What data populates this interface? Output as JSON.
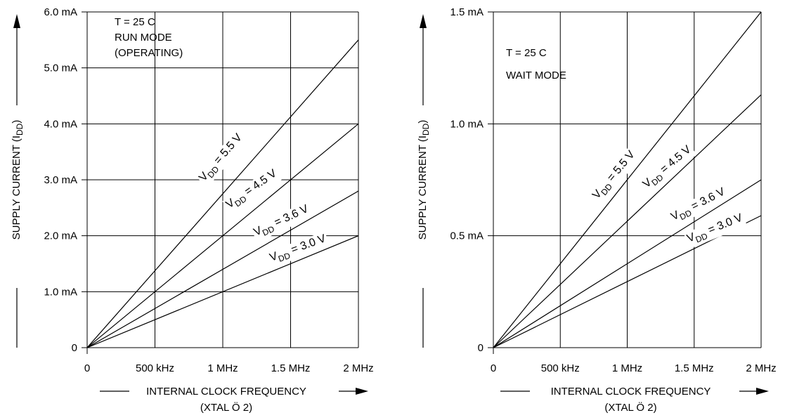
{
  "chart_data": [
    {
      "type": "line",
      "annotation": [
        "T = 25  C",
        "RUN MODE",
        "(OPERATING)"
      ],
      "xlabel": "INTERNAL CLOCK FREQUENCY",
      "xlabel_sub": "(XTAL Ö 2)",
      "ylabel": "SUPPLY CURRENT",
      "ylabel_symbol": "I",
      "ylabel_symbol_sub": "DD",
      "x_ticks": [
        "0",
        "500 kHz",
        "1 MHz",
        "1.5 MHz",
        "2 MHz"
      ],
      "y_ticks": [
        "0",
        "1.0 mA",
        "2.0 mA",
        "3.0 mA",
        "4.0 mA",
        "5.0 mA",
        "6.0 mA"
      ],
      "xlim": [
        0,
        2
      ],
      "ylim": [
        0,
        6
      ],
      "x_unit": "MHz",
      "y_unit": "mA",
      "grid": true,
      "series": [
        {
          "name_prefix": "V",
          "name_sub": "DD",
          "name_suffix": " = 5.5 V",
          "x": [
            0,
            2
          ],
          "y": [
            0,
            5.5
          ]
        },
        {
          "name_prefix": "V",
          "name_sub": "DD",
          "name_suffix": " = 4.5 V",
          "x": [
            0,
            2
          ],
          "y": [
            0,
            4.0
          ]
        },
        {
          "name_prefix": "V",
          "name_sub": "DD",
          "name_suffix": " = 3.6 V",
          "x": [
            0,
            2
          ],
          "y": [
            0,
            2.8
          ]
        },
        {
          "name_prefix": "V",
          "name_sub": "DD",
          "name_suffix": " = 3.0 V",
          "x": [
            0,
            2
          ],
          "y": [
            0,
            2.0
          ]
        }
      ]
    },
    {
      "type": "line",
      "annotation": [
        "T = 25  C",
        "WAIT MODE"
      ],
      "xlabel": "INTERNAL CLOCK FREQUENCY",
      "xlabel_sub": "(XTAL Ö 2)",
      "ylabel": "SUPPLY CURRENT",
      "ylabel_symbol": "I",
      "ylabel_symbol_sub": "DD",
      "x_ticks": [
        "0",
        "500 kHz",
        "1 MHz",
        "1.5 MHz",
        "2 MHz"
      ],
      "y_ticks": [
        "0",
        "0.5 mA",
        "1.0 mA",
        "1.5 mA"
      ],
      "xlim": [
        0,
        2
      ],
      "ylim": [
        0,
        1.5
      ],
      "x_unit": "MHz",
      "y_unit": "mA",
      "grid": true,
      "series": [
        {
          "name_prefix": "V",
          "name_sub": "DD",
          "name_suffix": " = 5.5 V",
          "x": [
            0,
            2
          ],
          "y": [
            0,
            1.5
          ]
        },
        {
          "name_prefix": "V",
          "name_sub": "DD",
          "name_suffix": " = 4.5 V",
          "x": [
            0,
            2
          ],
          "y": [
            0,
            1.13
          ]
        },
        {
          "name_prefix": "V",
          "name_sub": "DD",
          "name_suffix": " = 3.6 V",
          "x": [
            0,
            2
          ],
          "y": [
            0,
            0.75
          ]
        },
        {
          "name_prefix": "V",
          "name_sub": "DD",
          "name_suffix": " = 3.0 V",
          "x": [
            0,
            2
          ],
          "y": [
            0,
            0.59
          ]
        }
      ]
    }
  ]
}
